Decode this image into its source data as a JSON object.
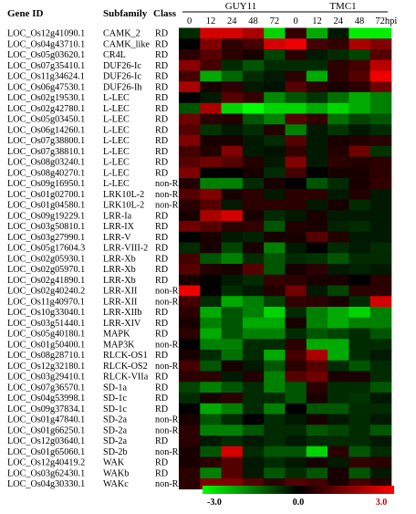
{
  "chart_data": {
    "type": "heatmap",
    "headers": {
      "gene_id": "Gene ID",
      "subfamily": "Subfamily",
      "class": "Class"
    },
    "groups": [
      "GUY11",
      "TMC1"
    ],
    "time_labels": [
      "0",
      "12",
      "24",
      "48",
      "72",
      "0",
      "12",
      "24",
      "48",
      "72hpi"
    ],
    "rows": [
      {
        "gene": "LOC_Os12g41090.1",
        "subfamily": "CAMK_2",
        "class": "RD"
      },
      {
        "gene": "LOC_Os04g43710.1",
        "subfamily": "CAMK_like",
        "class": "RD"
      },
      {
        "gene": "LOC_Os05g03620.1",
        "subfamily": "CR4L",
        "class": "RD"
      },
      {
        "gene": "LOC_Os07g35410.1",
        "subfamily": "DUF26-Ic",
        "class": "RD"
      },
      {
        "gene": "LOC_Os11g34624.1",
        "subfamily": "DUF26-Ic",
        "class": "RD"
      },
      {
        "gene": "LOC_Os06g47530.1",
        "subfamily": "DUF26-Ih",
        "class": "RD"
      },
      {
        "gene": "LOC_Os02g19530.1",
        "subfamily": "L-LEC",
        "class": "RD"
      },
      {
        "gene": "LOC_Os02g42780.1",
        "subfamily": "L-LEC",
        "class": "RD"
      },
      {
        "gene": "LOC_Os05g03450.1",
        "subfamily": "L-LEC",
        "class": "RD"
      },
      {
        "gene": "LOC_Os06g14260.1",
        "subfamily": "L-LEC",
        "class": "RD"
      },
      {
        "gene": "LOC_Os07g38800.1",
        "subfamily": "L-LEC",
        "class": "RD"
      },
      {
        "gene": "LOC_Os07g38810.1",
        "subfamily": "L-LEC",
        "class": "RD"
      },
      {
        "gene": "LOC_Os08g03240.1",
        "subfamily": "L-LEC",
        "class": "RD"
      },
      {
        "gene": "LOC_Os08g40270.1",
        "subfamily": "L-LEC",
        "class": "RD"
      },
      {
        "gene": "LOC_Os09g16950.1",
        "subfamily": "L-LEC",
        "class": "non-RD"
      },
      {
        "gene": "LOC_Os01g02700.1",
        "subfamily": "LRK10L-2",
        "class": "non-RD"
      },
      {
        "gene": "LOC_Os01g04580.1",
        "subfamily": "LRK10L-2",
        "class": "non-RD"
      },
      {
        "gene": "LOC_Os09g19229.1",
        "subfamily": "LRR-Ia",
        "class": "RD"
      },
      {
        "gene": "LOC_Os03g50810.1",
        "subfamily": "LRR-IX",
        "class": "RD"
      },
      {
        "gene": "LOC_Os03g27990.1",
        "subfamily": "LRR-V",
        "class": "RD"
      },
      {
        "gene": "LOC_Os05g17604.3",
        "subfamily": "LRR-VIII-2",
        "class": "RD"
      },
      {
        "gene": "LOC_Os02g05930.1",
        "subfamily": "LRR-Xb",
        "class": "RD"
      },
      {
        "gene": "LOC_Os02g05970.1",
        "subfamily": "LRR-Xb",
        "class": "RD"
      },
      {
        "gene": "LOC_Os02g41890.1",
        "subfamily": "LRR-Xb",
        "class": "RD"
      },
      {
        "gene": "LOC_Os02g40240.2",
        "subfamily": "LRR-XII",
        "class": "non-RD"
      },
      {
        "gene": "LOC_Os11g40970.1",
        "subfamily": "LRR-XII",
        "class": "non-RD"
      },
      {
        "gene": "LOC_Os10g33040.1",
        "subfamily": "LRR-XIIb",
        "class": "RD"
      },
      {
        "gene": "LOC_Os03g51440.1",
        "subfamily": "LRR-XIV",
        "class": "RD"
      },
      {
        "gene": "LOC_Os05g40180.1",
        "subfamily": "MAPK",
        "class": "RD"
      },
      {
        "gene": "LOC_Os01g50400.1",
        "subfamily": "MAP3K",
        "class": "non-RD"
      },
      {
        "gene": "LOC_Os08g28710.1",
        "subfamily": "RLCK-OS1",
        "class": "RD"
      },
      {
        "gene": "LOC_Os12g32180.1",
        "subfamily": "RLCK-OS2",
        "class": "non-RD"
      },
      {
        "gene": "LOC_Os03g29410.1",
        "subfamily": "RLCK-VIIa",
        "class": "RD"
      },
      {
        "gene": "LOC_Os07g36570.1",
        "subfamily": "SD-1a",
        "class": "RD"
      },
      {
        "gene": "LOC_Os04g53998.1",
        "subfamily": "SD-1c",
        "class": "RD"
      },
      {
        "gene": "LOC_Os09g37834.1",
        "subfamily": "SD-1c",
        "class": "RD"
      },
      {
        "gene": "LOC_Os01g47840.1",
        "subfamily": "SD-2a",
        "class": "non-RD"
      },
      {
        "gene": "LOC_Os01g66250.1",
        "subfamily": "SD-2a",
        "class": "non-RD"
      },
      {
        "gene": "LOC_Os12g03640.1",
        "subfamily": "SD-2a",
        "class": "RD"
      },
      {
        "gene": "LOC_Os01g65060.1",
        "subfamily": "SD-2b",
        "class": "non-RD"
      },
      {
        "gene": "LOC_Os12g40419.2",
        "subfamily": "WAK",
        "class": "RD"
      },
      {
        "gene": "LOC_Os03g62430.1",
        "subfamily": "WAKb",
        "class": "RD"
      },
      {
        "gene": "LOC_Os04g30330.1",
        "subfamily": "WAKc",
        "class": "non-RD"
      }
    ],
    "values": [
      [
        -0.5,
        2.5,
        2.5,
        2.0,
        -2.5,
        0.6,
        -2.0,
        -0.3,
        -2.8,
        -2.8
      ],
      [
        0.0,
        1.5,
        0.5,
        0.8,
        2.5,
        2.8,
        0.8,
        0.6,
        2.0,
        1.5
      ],
      [
        0.5,
        1.0,
        0.5,
        0.3,
        -0.8,
        0.5,
        -0.3,
        -0.5,
        -0.8,
        1.0
      ],
      [
        1.6,
        0.8,
        -0.5,
        -1.0,
        -0.5,
        -0.5,
        -0.5,
        0.5,
        0.8,
        2.2
      ],
      [
        0.8,
        -2.0,
        -1.2,
        -0.5,
        -0.3,
        0.5,
        -2.0,
        0.5,
        1.0,
        2.8
      ],
      [
        2.0,
        0.3,
        0.5,
        -0.3,
        -0.2,
        1.0,
        0.5,
        0.3,
        0.5,
        1.3
      ],
      [
        0.0,
        -0.3,
        1.0,
        0.6,
        -1.6,
        -1.0,
        -0.6,
        -1.3,
        -2.0,
        -1.5
      ],
      [
        -1.0,
        2.0,
        -2.5,
        -3.0,
        -2.5,
        -2.5,
        -2.0,
        -2.5,
        -2.0,
        -1.5
      ],
      [
        1.3,
        0.5,
        0.4,
        -1.0,
        -1.5,
        1.0,
        0.6,
        -1.3,
        -0.8,
        -1.0
      ],
      [
        1.0,
        -0.6,
        -0.3,
        -0.5,
        0.4,
        -1.5,
        -0.3,
        -0.6,
        -0.3,
        -0.5
      ],
      [
        1.5,
        0.3,
        0.3,
        -0.3,
        -0.5,
        1.0,
        -0.3,
        0.3,
        0.4,
        0.5
      ],
      [
        0.8,
        0.4,
        1.5,
        -0.3,
        -0.2,
        0.6,
        -0.3,
        0.4,
        1.3,
        -0.6
      ],
      [
        1.0,
        1.3,
        1.0,
        0.4,
        -0.3,
        1.5,
        -0.3,
        0.5,
        0.4,
        0.5
      ],
      [
        1.5,
        0.0,
        0.0,
        0.3,
        -0.5,
        0.8,
        0.0,
        0.3,
        0.3,
        0.5
      ],
      [
        0.4,
        -1.5,
        -1.5,
        -0.5,
        0.3,
        0.0,
        -1.0,
        -0.5,
        0.3,
        0.6
      ],
      [
        1.0,
        1.5,
        0.3,
        0.5,
        -0.3,
        0.5,
        0.5,
        -0.3,
        0.4,
        -0.3
      ],
      [
        0.5,
        1.0,
        -0.3,
        0.5,
        0.5,
        0.5,
        -0.3,
        0.3,
        -0.5,
        -0.3
      ],
      [
        0.3,
        2.0,
        2.5,
        0.3,
        -0.5,
        -0.3,
        0.3,
        -0.3,
        -0.3,
        -0.3
      ],
      [
        1.3,
        1.0,
        0.5,
        0.6,
        -1.0,
        0.4,
        0.3,
        -0.4,
        -0.5,
        -0.3
      ],
      [
        0.0,
        0.3,
        -0.3,
        -0.4,
        0.3,
        0.3,
        1.0,
        0.4,
        -0.3,
        -0.3
      ],
      [
        -0.5,
        0.3,
        -0.8,
        0.3,
        -1.5,
        -0.3,
        0.0,
        -0.5,
        -0.3,
        -0.5
      ],
      [
        0.8,
        -1.0,
        -1.5,
        -0.5,
        -1.0,
        -0.5,
        -0.6,
        -1.0,
        -0.5,
        -0.5
      ],
      [
        1.0,
        0.4,
        0.3,
        1.0,
        -1.0,
        0.3,
        0.5,
        -0.3,
        -0.4,
        -0.3
      ],
      [
        0.3,
        0.0,
        -0.3,
        -0.5,
        0.6,
        0.5,
        0.3,
        0.3,
        0.0,
        0.5
      ],
      [
        2.8,
        0.0,
        -0.5,
        -0.3,
        0.4,
        1.3,
        -0.3,
        -0.8,
        0.5,
        0.5
      ],
      [
        0.8,
        -0.5,
        -2.0,
        -1.5,
        -0.8,
        0.6,
        0.5,
        0.3,
        -0.5,
        2.5
      ],
      [
        0.5,
        -2.0,
        -1.0,
        -1.5,
        -2.5,
        -0.5,
        -1.5,
        -2.0,
        -2.5,
        -1.5
      ],
      [
        0.3,
        -1.5,
        -1.0,
        -2.0,
        -2.0,
        0.3,
        -1.5,
        -2.0,
        -1.5,
        -1.5
      ],
      [
        0.5,
        -2.0,
        -1.0,
        -1.5,
        -1.5,
        -0.5,
        -1.0,
        -0.8,
        -0.5,
        -1.0
      ],
      [
        0.0,
        -1.5,
        -1.5,
        -0.5,
        -0.5,
        0.5,
        -2.0,
        -2.0,
        -0.5,
        -0.5
      ],
      [
        0.3,
        -0.5,
        -1.3,
        -0.5,
        -2.0,
        0.8,
        2.0,
        -2.0,
        -0.5,
        -0.3
      ],
      [
        0.8,
        -1.0,
        0.3,
        -0.3,
        -1.0,
        0.5,
        1.0,
        -0.5,
        -1.0,
        -0.5
      ],
      [
        0.5,
        0.5,
        -0.3,
        0.4,
        -1.5,
        1.0,
        1.3,
        0.3,
        0.3,
        -0.5
      ],
      [
        -0.8,
        -1.5,
        -1.0,
        -0.5,
        -1.5,
        -1.0,
        0.5,
        -0.5,
        -0.5,
        -1.0
      ],
      [
        -0.5,
        0.3,
        0.5,
        -0.5,
        -0.5,
        -1.0,
        0.3,
        -0.5,
        -0.6,
        -0.3
      ],
      [
        0.0,
        -2.0,
        -1.5,
        -0.5,
        -1.5,
        0.0,
        -1.0,
        -1.0,
        -0.5,
        -0.5
      ],
      [
        0.3,
        -1.0,
        -0.5,
        0.0,
        -0.5,
        -0.3,
        0.3,
        -0.3,
        -0.5,
        -0.3
      ],
      [
        0.5,
        -1.5,
        -1.5,
        -1.0,
        -0.5,
        -0.5,
        -1.0,
        -0.8,
        -0.5,
        -1.0
      ],
      [
        0.5,
        -0.3,
        -0.5,
        -0.3,
        -0.5,
        -0.3,
        -0.5,
        -0.5,
        -0.5,
        -0.3
      ],
      [
        0.3,
        -1.0,
        2.5,
        -0.5,
        -1.0,
        -1.0,
        -2.5,
        0.5,
        -1.0,
        -0.5
      ],
      [
        0.3,
        0.5,
        1.0,
        -0.3,
        -0.5,
        -0.3,
        0.3,
        -0.3,
        0.6,
        0.5
      ],
      [
        0.5,
        -1.5,
        1.0,
        -0.3,
        -1.0,
        -0.5,
        -1.0,
        0.3,
        -1.0,
        -0.3
      ],
      [
        0.5,
        1.5,
        1.5,
        1.0,
        0.5,
        1.0,
        0.8,
        0.3,
        0.8,
        0.5
      ]
    ],
    "colorbar": {
      "min": -3.0,
      "mid": 0.0,
      "max": 3.0,
      "min_label": "-3.0",
      "mid_label": "0.0",
      "max_label": "3.0",
      "low_color": "#00ff00",
      "mid_color": "#000000",
      "high_color": "#ff0000"
    }
  }
}
